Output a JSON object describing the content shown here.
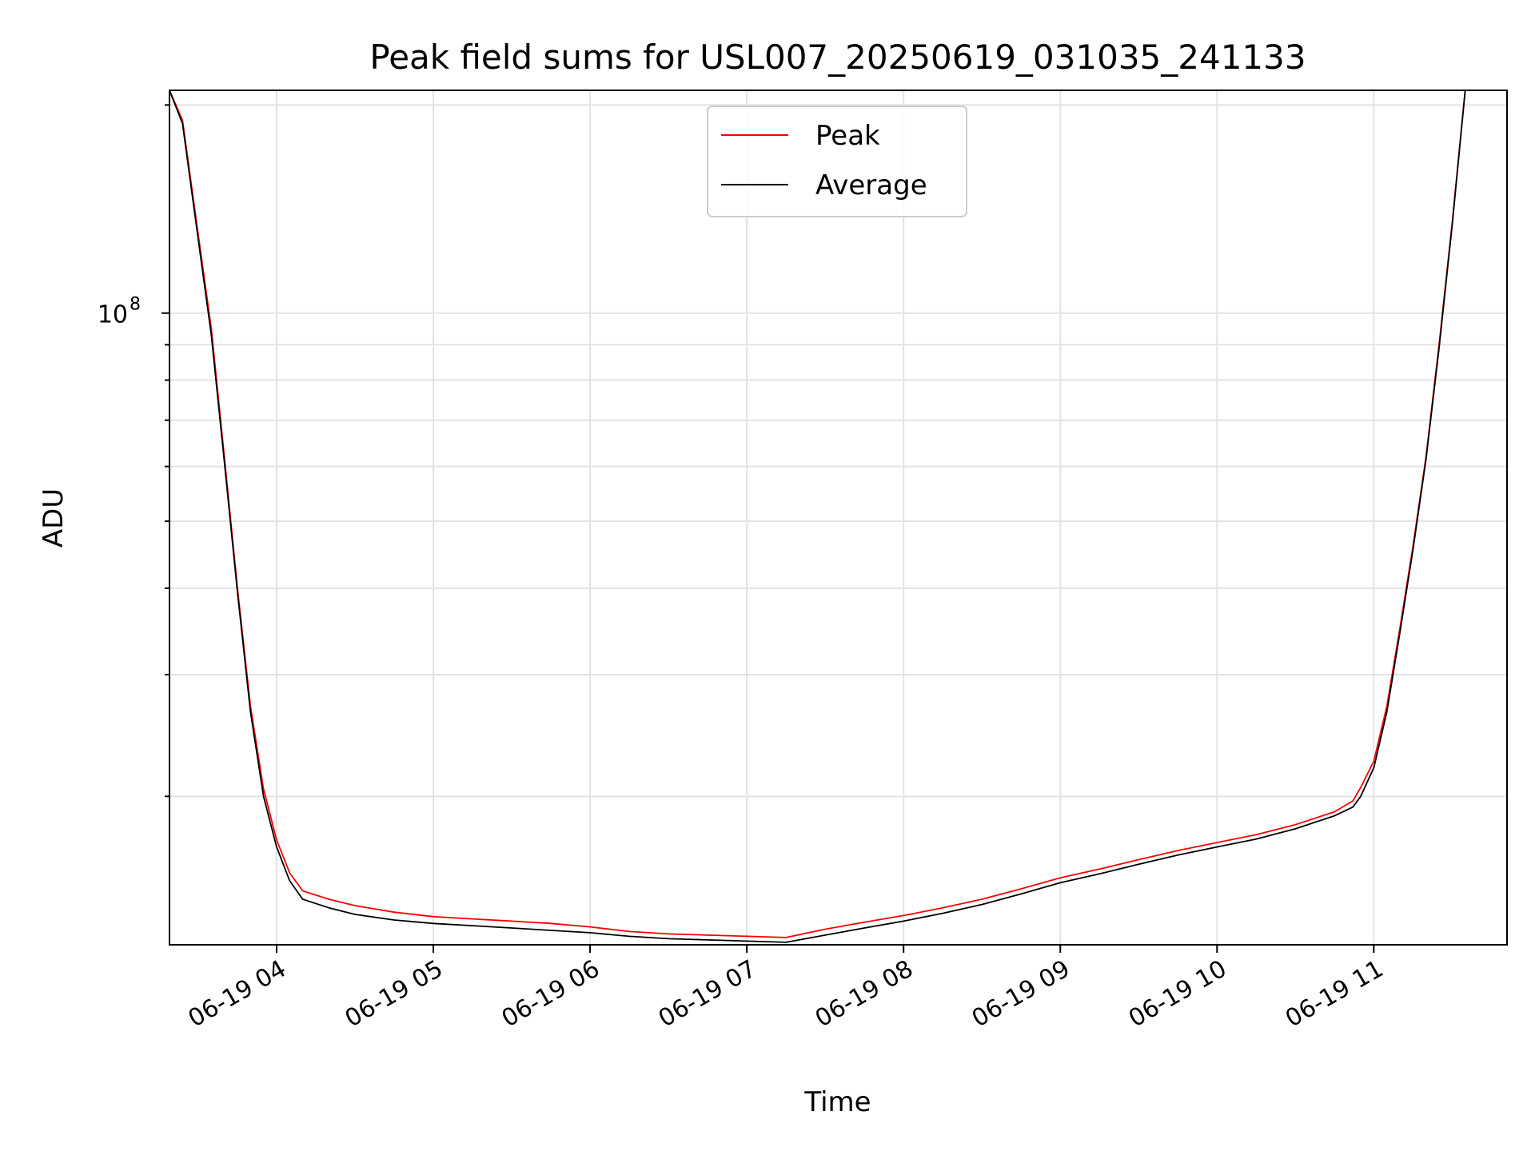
{
  "chart_data": {
    "type": "line",
    "title": "Peak field sums for USL007_20250619_031035_241133",
    "xlabel": "Time",
    "ylabel": "ADU",
    "yscale": "log",
    "grid": true,
    "legend_position": "upper center",
    "xlim": [
      "2025-06-19 03:19",
      "2025-06-19 11:51"
    ],
    "ylim": [
      12200000,
      210000000
    ],
    "x_ticks": [
      {
        "value": "2025-06-19 04:00",
        "label": "06-19 04"
      },
      {
        "value": "2025-06-19 05:00",
        "label": "06-19 05"
      },
      {
        "value": "2025-06-19 06:00",
        "label": "06-19 06"
      },
      {
        "value": "2025-06-19 07:00",
        "label": "06-19 07"
      },
      {
        "value": "2025-06-19 08:00",
        "label": "06-19 08"
      },
      {
        "value": "2025-06-19 09:00",
        "label": "06-19 09"
      },
      {
        "value": "2025-06-19 10:00",
        "label": "06-19 10"
      },
      {
        "value": "2025-06-19 11:00",
        "label": "06-19 11"
      }
    ],
    "y_major_tick": {
      "value": 100000000,
      "label_base": "10",
      "label_exp": "8"
    },
    "y_minor_ticks": [
      20000000,
      30000000,
      40000000,
      50000000,
      60000000,
      70000000,
      80000000,
      90000000,
      200000000
    ],
    "colors": {
      "Peak": "#ff0000",
      "Average": "#000000"
    },
    "series": [
      {
        "name": "Peak",
        "color": "#ff0000",
        "x": [
          "2025-06-19 03:19",
          "2025-06-19 03:24",
          "2025-06-19 03:30",
          "2025-06-19 03:35",
          "2025-06-19 03:40",
          "2025-06-19 03:45",
          "2025-06-19 03:50",
          "2025-06-19 03:55",
          "2025-06-19 04:00",
          "2025-06-19 04:05",
          "2025-06-19 04:10",
          "2025-06-19 04:20",
          "2025-06-19 04:30",
          "2025-06-19 04:45",
          "2025-06-19 05:00",
          "2025-06-19 05:15",
          "2025-06-19 05:30",
          "2025-06-19 05:45",
          "2025-06-19 06:00",
          "2025-06-19 06:15",
          "2025-06-19 06:30",
          "2025-06-19 06:45",
          "2025-06-19 07:00",
          "2025-06-19 07:15",
          "2025-06-19 07:30",
          "2025-06-19 07:45",
          "2025-06-19 08:00",
          "2025-06-19 08:15",
          "2025-06-19 08:30",
          "2025-06-19 08:45",
          "2025-06-19 09:00",
          "2025-06-19 09:15",
          "2025-06-19 09:30",
          "2025-06-19 09:45",
          "2025-06-19 10:00",
          "2025-06-19 10:15",
          "2025-06-19 10:30",
          "2025-06-19 10:45",
          "2025-06-19 10:52",
          "2025-06-19 10:55",
          "2025-06-19 11:00",
          "2025-06-19 11:05",
          "2025-06-19 11:10",
          "2025-06-19 11:15",
          "2025-06-19 11:20",
          "2025-06-19 11:25",
          "2025-06-19 11:30",
          "2025-06-19 11:35"
        ],
        "values": [
          210000000,
          190000000,
          130000000,
          95000000,
          62000000,
          40000000,
          27000000,
          20500000,
          17300000,
          15500000,
          14600000,
          14200000,
          13900000,
          13600000,
          13400000,
          13300000,
          13200000,
          13100000,
          12950000,
          12750000,
          12650000,
          12600000,
          12550000,
          12500000,
          12850000,
          13150000,
          13450000,
          13800000,
          14200000,
          14700000,
          15250000,
          15700000,
          16200000,
          16700000,
          17150000,
          17600000,
          18200000,
          19000000,
          19700000,
          20600000,
          22500000,
          27000000,
          35000000,
          46000000,
          62000000,
          90000000,
          135000000,
          210000000
        ]
      },
      {
        "name": "Average",
        "color": "#000000",
        "x": [
          "2025-06-19 03:19",
          "2025-06-19 03:24",
          "2025-06-19 03:30",
          "2025-06-19 03:35",
          "2025-06-19 03:40",
          "2025-06-19 03:45",
          "2025-06-19 03:50",
          "2025-06-19 03:55",
          "2025-06-19 04:00",
          "2025-06-19 04:05",
          "2025-06-19 04:10",
          "2025-06-19 04:20",
          "2025-06-19 04:30",
          "2025-06-19 04:45",
          "2025-06-19 05:00",
          "2025-06-19 05:15",
          "2025-06-19 05:30",
          "2025-06-19 05:45",
          "2025-06-19 06:00",
          "2025-06-19 06:15",
          "2025-06-19 06:30",
          "2025-06-19 06:45",
          "2025-06-19 07:00",
          "2025-06-19 07:15",
          "2025-06-19 07:30",
          "2025-06-19 07:45",
          "2025-06-19 08:00",
          "2025-06-19 08:15",
          "2025-06-19 08:30",
          "2025-06-19 08:45",
          "2025-06-19 09:00",
          "2025-06-19 09:15",
          "2025-06-19 09:30",
          "2025-06-19 09:45",
          "2025-06-19 10:00",
          "2025-06-19 10:15",
          "2025-06-19 10:30",
          "2025-06-19 10:45",
          "2025-06-19 10:52",
          "2025-06-19 10:55",
          "2025-06-19 11:00",
          "2025-06-19 11:05",
          "2025-06-19 11:10",
          "2025-06-19 11:15",
          "2025-06-19 11:20",
          "2025-06-19 11:25",
          "2025-06-19 11:30",
          "2025-06-19 11:35"
        ],
        "values": [
          210000000,
          188000000,
          128000000,
          93000000,
          61000000,
          39500000,
          26500000,
          20000000,
          16900000,
          15100000,
          14200000,
          13800000,
          13500000,
          13250000,
          13100000,
          13000000,
          12900000,
          12800000,
          12700000,
          12550000,
          12450000,
          12400000,
          12350000,
          12300000,
          12600000,
          12900000,
          13200000,
          13550000,
          13950000,
          14450000,
          15000000,
          15450000,
          15950000,
          16450000,
          16900000,
          17350000,
          17950000,
          18750000,
          19300000,
          20000000,
          22000000,
          26500000,
          34500000,
          45500000,
          61500000,
          89000000,
          134000000,
          210000000
        ]
      }
    ]
  }
}
